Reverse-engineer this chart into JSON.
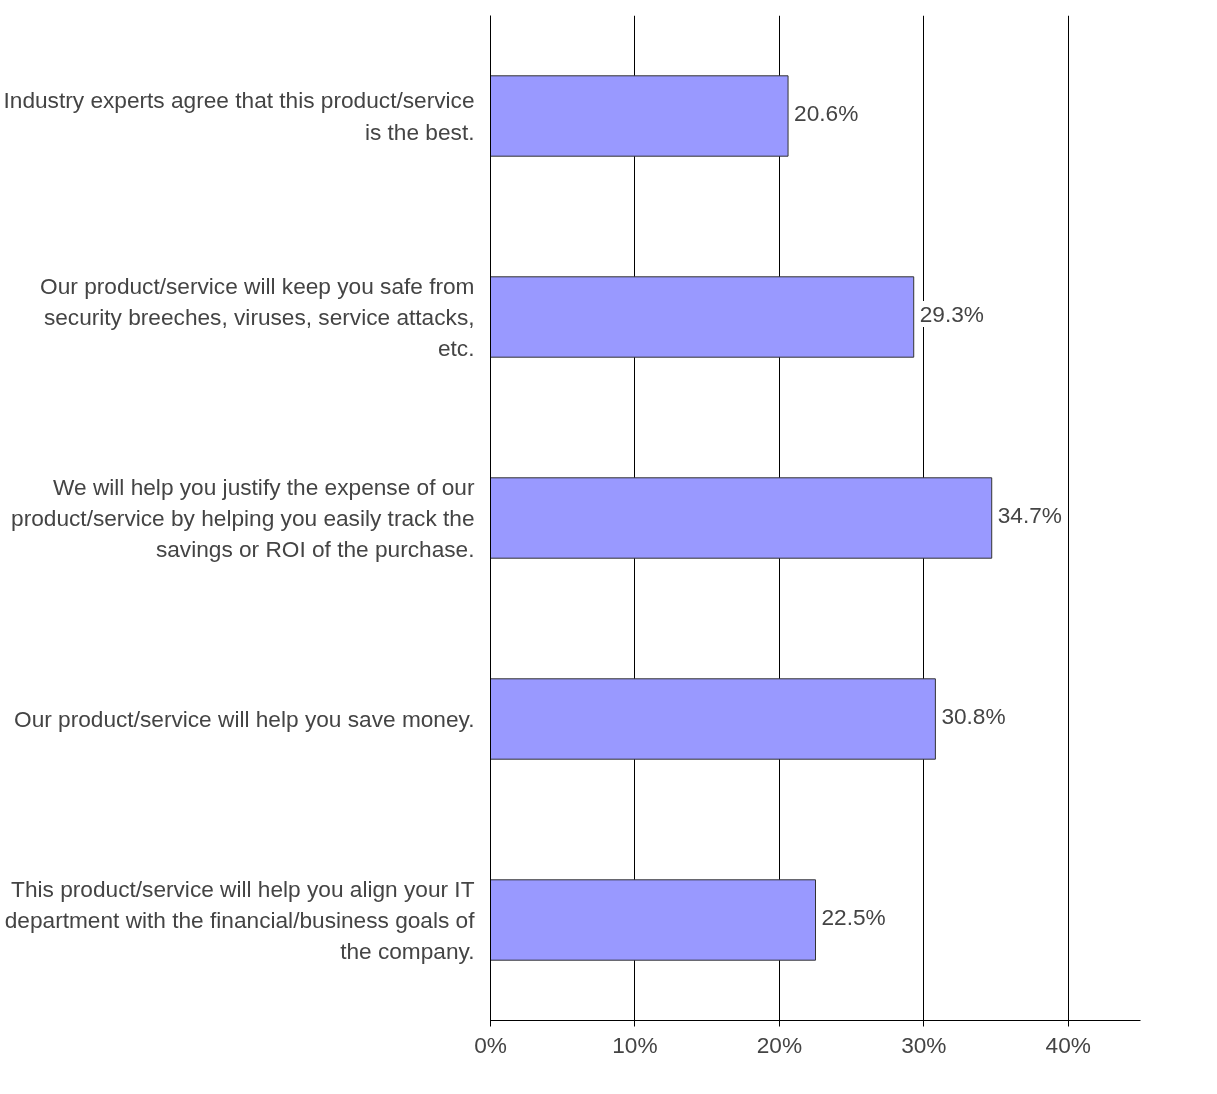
{
  "chart_data": {
    "type": "bar",
    "orientation": "horizontal",
    "categories": [
      "Industry experts agree that this product/service is the best.",
      "Our product/service will keep you safe from security breeches, viruses, service attacks, etc.",
      "We will help you justify the expense of our product/service by helping you easily track the savings or ROI of the purchase.",
      "Our product/service will help you save money.",
      "This product/service will help you align your IT department with the financial/business goals of the company."
    ],
    "values": [
      20.6,
      29.3,
      34.7,
      30.8,
      22.5
    ],
    "value_labels": [
      "20.6%",
      "29.3%",
      "34.7%",
      "30.8%",
      "22.5%"
    ],
    "color": "#9999ff",
    "xlim": [
      0,
      45
    ],
    "xticks": [
      {
        "value": 0,
        "label": "0%"
      },
      {
        "value": 10,
        "label": "10%"
      },
      {
        "value": 20,
        "label": "20%"
      },
      {
        "value": 30,
        "label": "30%"
      },
      {
        "value": 40,
        "label": "40%"
      }
    ],
    "grid": "x"
  }
}
